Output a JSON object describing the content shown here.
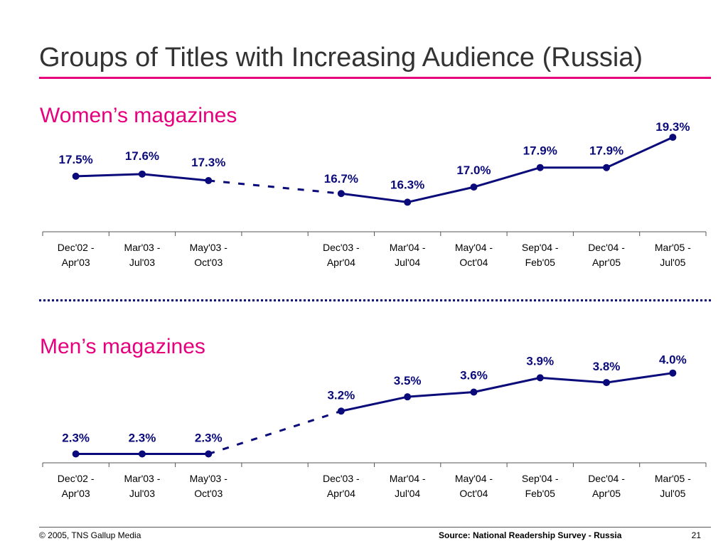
{
  "header": {
    "title": "Groups of Titles with Increasing Audience (Russia)"
  },
  "sections": {
    "women": {
      "title": "Women’s magazines"
    },
    "men": {
      "title": "Men’s magazines"
    }
  },
  "colors": {
    "accent": "#e6007e",
    "series": "#0a0a7a"
  },
  "chart_data": [
    {
      "type": "line",
      "categories": [
        [
          "Dec'02 -",
          "Apr'03"
        ],
        [
          "Mar'03 -",
          "Jul'03"
        ],
        [
          "May'03 -",
          "Oct'03"
        ],
        [
          "",
          ""
        ],
        [
          "Dec'03 -",
          "Apr'04"
        ],
        [
          "Mar'04 -",
          "Jul'04"
        ],
        [
          "May'04 -",
          "Oct'04"
        ],
        [
          "Sep'04 -",
          "Feb'05"
        ],
        [
          "Dec'04 -",
          "Apr'05"
        ],
        [
          "Mar'05 -",
          "Jul'05"
        ]
      ],
      "values": [
        17.5,
        17.6,
        17.3,
        null,
        16.7,
        16.3,
        17.0,
        17.9,
        17.9,
        19.3
      ],
      "labels": [
        "17.5%",
        "17.6%",
        "17.3%",
        null,
        "16.7%",
        "16.3%",
        "17.0%",
        "17.9%",
        "17.9%",
        "19.3%"
      ],
      "dashed_gap": [
        2,
        4
      ],
      "ylim": [
        15.0,
        19.5
      ],
      "title": "Women’s magazines"
    },
    {
      "type": "line",
      "categories": [
        [
          "Dec'02 -",
          "Apr'03"
        ],
        [
          "Mar'03 -",
          "Jul'03"
        ],
        [
          "May'03 -",
          "Oct'03"
        ],
        [
          "",
          ""
        ],
        [
          "Dec'03 -",
          "Apr'04"
        ],
        [
          "Mar'04 -",
          "Jul'04"
        ],
        [
          "May'04 -",
          "Oct'04"
        ],
        [
          "Sep'04 -",
          "Feb'05"
        ],
        [
          "Dec'04 -",
          "Apr'05"
        ],
        [
          "Mar'05 -",
          "Jul'05"
        ]
      ],
      "values": [
        2.3,
        2.3,
        2.3,
        null,
        3.2,
        3.5,
        3.6,
        3.9,
        3.8,
        4.0
      ],
      "labels": [
        "2.3%",
        "2.3%",
        "2.3%",
        null,
        "3.2%",
        "3.5%",
        "3.6%",
        "3.9%",
        "3.8%",
        "4.0%"
      ],
      "dashed_gap": [
        2,
        4
      ],
      "ylim": [
        1.8,
        4.1
      ],
      "title": "Men’s magazines"
    }
  ],
  "footer": {
    "copyright": "© 2005, TNS Gallup Media",
    "source": "Source: National Readership Survey - Russia",
    "page": "21"
  }
}
